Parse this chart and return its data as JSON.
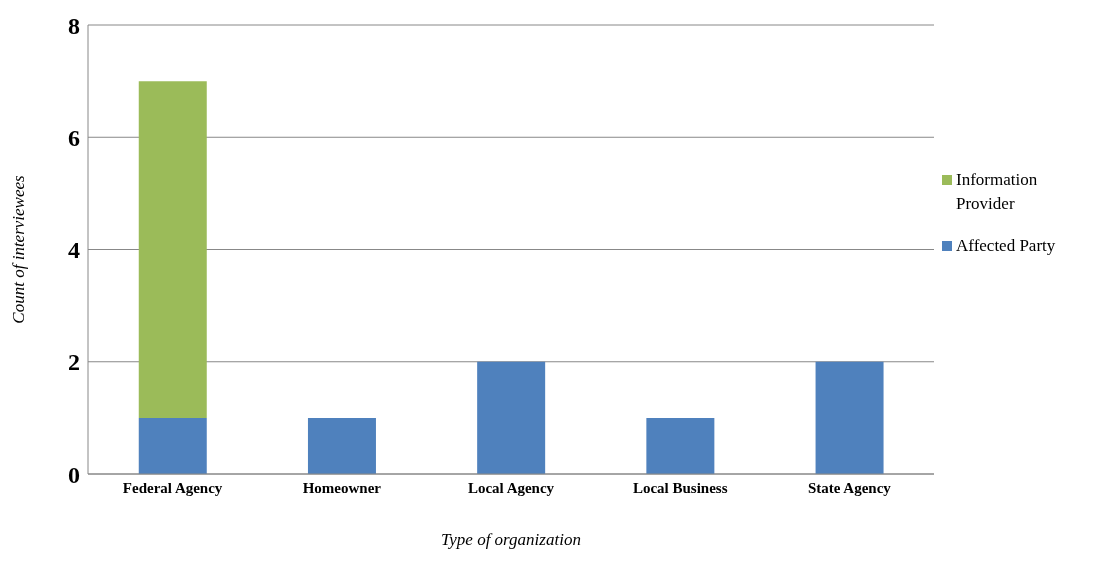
{
  "chart_data": {
    "type": "bar",
    "stacked": true,
    "xlabel": "Type of organization",
    "ylabel": "Count of interviewees",
    "categories": [
      "Federal Agency",
      "Homeowner",
      "Local Agency",
      "Local Business",
      "State Agency"
    ],
    "series": [
      {
        "name": "Affected Party",
        "color": "#4f81bd",
        "values": [
          1,
          1,
          2,
          1,
          2
        ]
      },
      {
        "name": "Information Provider",
        "color": "#9bbb59",
        "values": [
          6,
          null,
          null,
          null,
          null
        ]
      }
    ],
    "ylim": [
      0,
      8
    ],
    "yticks": [
      0,
      2,
      4,
      6,
      8
    ],
    "grid": "y",
    "legend": "right"
  }
}
